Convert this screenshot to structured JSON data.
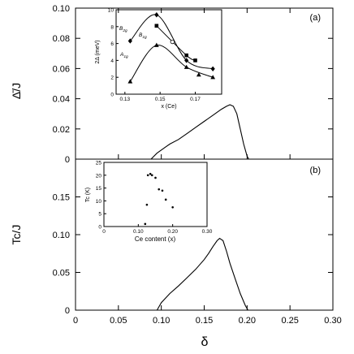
{
  "chart_data": [
    {
      "panel_label": "(a)",
      "type": "line",
      "ylabel": "Δ̄/J",
      "xlim": [
        0,
        0.3
      ],
      "ylim": [
        0,
        0.1
      ],
      "xticks": [
        "0",
        "0.05",
        "0.10",
        "0.15",
        "0.20",
        "0.25",
        "0.30"
      ],
      "yticks": [
        "0",
        "0.02",
        "0.04",
        "0.06",
        "0.08",
        "0.10"
      ],
      "series": [
        {
          "x": [
            0.088,
            0.095,
            0.105,
            0.11,
            0.12,
            0.13,
            0.14,
            0.15,
            0.16,
            0.17,
            0.176,
            0.18,
            0.184,
            0.188,
            0.192,
            0.196,
            0.2,
            0.202
          ],
          "y": [
            0.0,
            0.004,
            0.008,
            0.01,
            0.013,
            0.017,
            0.021,
            0.025,
            0.029,
            0.033,
            0.035,
            0.036,
            0.035,
            0.03,
            0.02,
            0.01,
            0.002,
            0.0
          ]
        }
      ],
      "inset": {
        "type": "line",
        "xlabel": "x (Ce)",
        "ylabel": "2Δ (meV)",
        "xlim": [
          0.125,
          0.185
        ],
        "ylim": [
          0,
          10
        ],
        "xticks": [
          "0.13",
          "0.15",
          "0.17"
        ],
        "yticks": [
          "0",
          "2",
          "4",
          "6",
          "8",
          "10"
        ],
        "series": [
          {
            "name": "B2g",
            "marker": "diamond",
            "x": [
              0.133,
              0.148,
              0.165,
              0.18
            ],
            "y": [
              6.3,
              9.4,
              4.0,
              3.0
            ]
          },
          {
            "name": "B1g",
            "marker": "square",
            "x": [
              0.148,
              0.165,
              0.17
            ],
            "y": [
              8.1,
              4.6,
              4.0
            ]
          },
          {
            "name": "A1g",
            "marker": "triangle",
            "x": [
              0.133,
              0.148,
              0.165,
              0.18
            ],
            "y": [
              1.5,
              5.8,
              3.2,
              2.0
            ]
          }
        ],
        "extra_markers": [
          {
            "marker": "circle-open",
            "x": 0.157,
            "y": 6.2
          },
          {
            "marker": "triangle",
            "x": 0.172,
            "y": 2.3
          }
        ]
      }
    },
    {
      "panel_label": "(b)",
      "type": "line",
      "ylabel": "Tc/J",
      "xlabel": "δ",
      "xlim": [
        0,
        0.3
      ],
      "ylim": [
        0,
        0.2
      ],
      "xticks": [
        "0",
        "0.05",
        "0.10",
        "0.15",
        "0.20",
        "0.25",
        "0.30"
      ],
      "yticks": [
        "0",
        "0.05",
        "0.10",
        "0.15"
      ],
      "series": [
        {
          "x": [
            0.095,
            0.1,
            0.11,
            0.12,
            0.13,
            0.14,
            0.15,
            0.155,
            0.16,
            0.165,
            0.168,
            0.172,
            0.176,
            0.18,
            0.186,
            0.192,
            0.198,
            0.201
          ],
          "y": [
            0.0,
            0.01,
            0.022,
            0.032,
            0.043,
            0.054,
            0.067,
            0.075,
            0.084,
            0.092,
            0.095,
            0.092,
            0.078,
            0.062,
            0.042,
            0.022,
            0.006,
            0.0
          ]
        }
      ],
      "inset": {
        "type": "scatter",
        "xlabel": "Ce content (x)",
        "ylabel": "Tc (K)",
        "xlim": [
          0,
          0.3
        ],
        "ylim": [
          0,
          25
        ],
        "xticks": [
          "0",
          "0.10",
          "0.20",
          "0.30"
        ],
        "yticks": [
          "0",
          "5",
          "10",
          "15",
          "20",
          "25"
        ],
        "series": [
          {
            "x": [
              0.12,
              0.125,
              0.128,
              0.135,
              0.14,
              0.15,
              0.16,
              0.17,
              0.18,
              0.2
            ],
            "y": [
              1.0,
              8.5,
              20.0,
              20.5,
              20.0,
              19.0,
              14.5,
              14.0,
              10.5,
              7.5
            ]
          }
        ]
      }
    }
  ]
}
